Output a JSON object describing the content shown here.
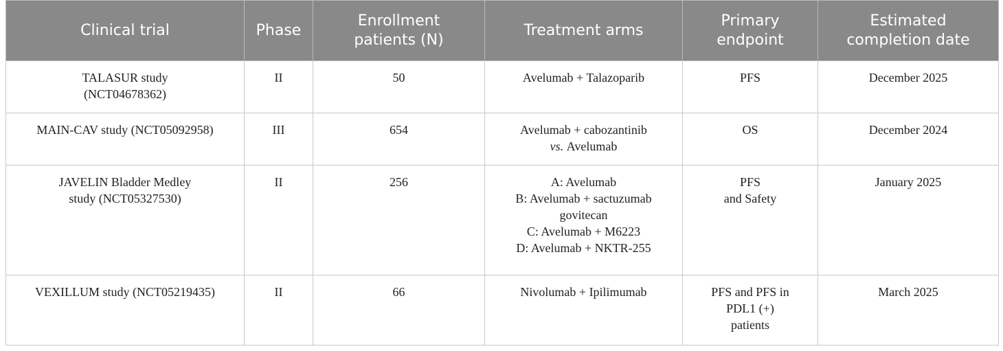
{
  "table": {
    "header": [
      [
        "Clinical trial"
      ],
      [
        "Phase"
      ],
      [
        "Enrollment",
        "patients (N)"
      ],
      [
        "Treatment arms"
      ],
      [
        "Primary",
        "endpoint"
      ],
      [
        "Estimated",
        "completion date"
      ]
    ],
    "rows": [
      [
        [
          "TALASUR study",
          "(NCT04678362)"
        ],
        [
          "II"
        ],
        [
          "50"
        ],
        [
          "Avelumab + Talazoparib"
        ],
        [
          "PFS"
        ],
        [
          "December 2025"
        ]
      ],
      [
        [
          "MAIN-CAV study (NCT05092958)"
        ],
        [
          "III"
        ],
        [
          "654"
        ],
        [
          "Avelumab + cabozantinib",
          {
            "em": "vs.",
            "text": "Avelumab"
          }
        ],
        [
          "OS"
        ],
        [
          "December 2024"
        ]
      ],
      [
        [
          "JAVELIN Bladder Medley",
          "study (NCT05327530)"
        ],
        [
          "II"
        ],
        [
          "256"
        ],
        [
          "A: Avelumab",
          "B: Avelumab + sactuzumab",
          "govitecan",
          "C: Avelumab + M6223",
          "D: Avelumab + NKTR-255"
        ],
        [
          "PFS",
          "and Safety"
        ],
        [
          "January 2025"
        ]
      ],
      [
        [
          "VEXILLUM study (NCT05219435)"
        ],
        [
          "II"
        ],
        [
          "66"
        ],
        [
          "Nivolumab + Ipilimumab"
        ],
        [
          "PFS and PFS in",
          "PDL1 (+)",
          "patients"
        ],
        [
          "March 2025"
        ]
      ]
    ]
  }
}
